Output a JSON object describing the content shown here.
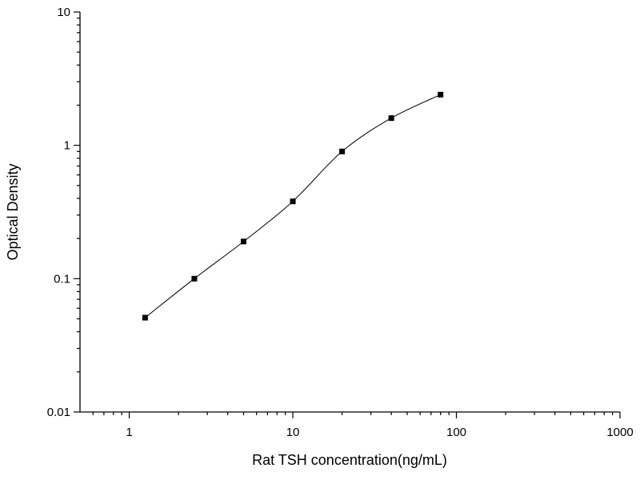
{
  "chart_data": {
    "type": "scatter",
    "title": "",
    "xlabel": "Rat TSH concentration(ng/mL)",
    "ylabel": "Optical Density",
    "x_scale": "log",
    "y_scale": "log",
    "xlim": [
      0.5,
      1000
    ],
    "ylim": [
      0.01,
      10
    ],
    "x_major_ticks": [
      1,
      10,
      100,
      1000
    ],
    "x_tick_labels": [
      "1",
      "10",
      "100",
      "1000"
    ],
    "y_major_ticks": [
      0.01,
      0.1,
      1,
      10
    ],
    "y_tick_labels": [
      "0.01",
      "0.1",
      "1",
      "10"
    ],
    "grid": false,
    "legend": false,
    "curve": "smooth fit line through points",
    "series": [
      {
        "marker": "filled-square",
        "color": "#000000",
        "x": [
          1.25,
          2.5,
          5,
          10,
          20,
          40,
          80
        ],
        "y": [
          0.051,
          0.1,
          0.19,
          0.38,
          0.9,
          1.6,
          2.4
        ]
      }
    ]
  }
}
